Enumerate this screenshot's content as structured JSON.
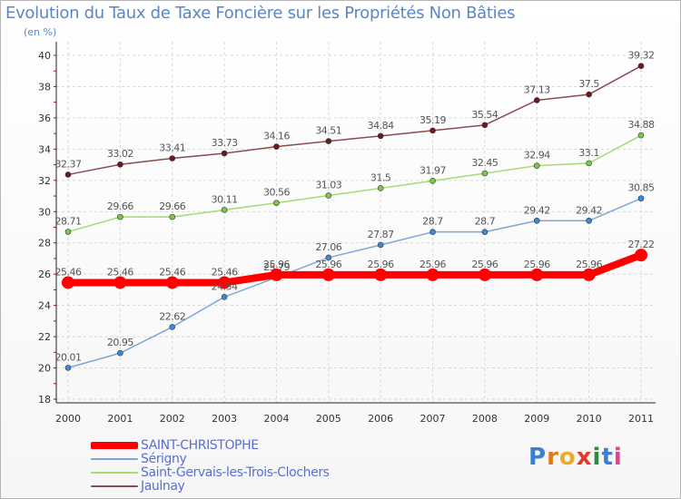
{
  "title": "Evolution du Taux de Taxe Foncière sur les Propriétés Non Bâties",
  "unit": "(en %)",
  "brand": "Proxiti",
  "chart_data": {
    "type": "line",
    "title": "Evolution du Taux de Taxe Foncière sur les Propriétés Non Bâties",
    "ylabel": "(en %)",
    "xlabel": "",
    "ylim": [
      18,
      40
    ],
    "yticks": [
      18,
      20,
      22,
      24,
      26,
      28,
      30,
      32,
      34,
      36,
      38,
      40
    ],
    "grid": true,
    "x": [
      "2000",
      "2001",
      "2002",
      "2003",
      "2004",
      "2005",
      "2006",
      "2007",
      "2008",
      "2009",
      "2010",
      "2011"
    ],
    "series": [
      {
        "name": "SAINT-CHRISTOPHE",
        "color": "#ff0000",
        "values": [
          25.46,
          25.46,
          25.46,
          25.46,
          25.96,
          25.96,
          25.96,
          25.96,
          25.96,
          25.96,
          25.96,
          27.22
        ],
        "labels": [
          "25.46",
          "25.46",
          "25.46",
          "25.46",
          "25.96",
          "25.96",
          "25.96",
          "25.96",
          "25.96",
          "25.96",
          "25.96",
          "27.22"
        ]
      },
      {
        "name": "Sérigny",
        "color": "#7ea7d6",
        "values": [
          20.01,
          20.95,
          22.62,
          24.54,
          25.79,
          27.06,
          27.87,
          28.7,
          28.7,
          29.42,
          29.42,
          30.85
        ],
        "labels": [
          "20.01",
          "20.95",
          "22.62",
          "24.54",
          "25.79",
          "27.06",
          "27.87",
          "28.7",
          "28.7",
          "29.42",
          "29.42",
          "30.85"
        ]
      },
      {
        "name": "Saint-Gervais-les-Trois-Clochers",
        "color": "#a6da72",
        "values": [
          28.71,
          29.66,
          29.66,
          30.11,
          30.56,
          31.03,
          31.5,
          31.97,
          32.45,
          32.94,
          33.1,
          34.88
        ],
        "labels": [
          "28.71",
          "29.66",
          "29.66",
          "30.11",
          "30.56",
          "31.03",
          "31.5",
          "31.97",
          "32.45",
          "32.94",
          "33.1",
          "34.88"
        ]
      },
      {
        "name": "Jaulnay",
        "color": "#8b4b4f",
        "values": [
          32.37,
          33.02,
          33.41,
          33.73,
          34.16,
          34.51,
          34.84,
          35.19,
          35.54,
          37.13,
          37.5,
          39.32
        ],
        "labels": [
          "32.37",
          "33.02",
          "33.41",
          "33.73",
          "34.16",
          "34.51",
          "34.84",
          "35.19",
          "35.54",
          "37.13",
          "37.5",
          "39.32"
        ]
      }
    ]
  }
}
